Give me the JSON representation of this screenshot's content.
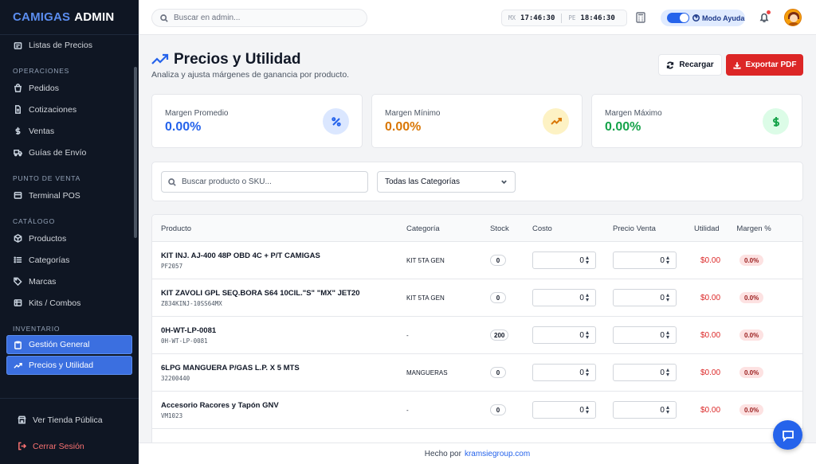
{
  "brand": {
    "part1": "CAMIGAS",
    "part2": "ADMIN"
  },
  "sidebar": {
    "top_item": "Listas de Precios",
    "sections": [
      {
        "title": "OPERACIONES",
        "items": [
          "Pedidos",
          "Cotizaciones",
          "Ventas",
          "Guías de Envío"
        ]
      },
      {
        "title": "PUNTO DE VENTA",
        "items": [
          "Terminal POS"
        ]
      },
      {
        "title": "CATÁLOGO",
        "items": [
          "Productos",
          "Categorías",
          "Marcas",
          "Kits / Combos"
        ]
      },
      {
        "title": "INVENTARIO",
        "items": [
          "Gestión General",
          "Precios y Utilidad"
        ]
      }
    ],
    "bottom": {
      "store": "Ver Tienda Pública",
      "logout": "Cerrar Sesión"
    }
  },
  "topbar": {
    "search_placeholder": "Buscar en admin...",
    "clocks": [
      {
        "code": "MX",
        "time": "17:46:30"
      },
      {
        "code": "PE",
        "time": "18:46:30"
      }
    ],
    "help_label": "Modo Ayuda"
  },
  "page": {
    "title": "Precios y Utilidad",
    "subtitle": "Analiza y ajusta márgenes de ganancia por producto.",
    "reload_label": "Recargar",
    "export_label": "Exportar PDF"
  },
  "stats": [
    {
      "label": "Margen Promedio",
      "value": "0.00%",
      "color": "#2563eb",
      "icon": "percent-icon"
    },
    {
      "label": "Margen Mínimo",
      "value": "0.00%",
      "color": "#d97706",
      "icon": "trending-up-icon"
    },
    {
      "label": "Margen Máximo",
      "value": "0.00%",
      "color": "#16a34a",
      "icon": "dollar-icon"
    }
  ],
  "filters": {
    "search_placeholder": "Buscar producto o SKU...",
    "category_selected": "Todas las Categorías"
  },
  "table": {
    "headers": {
      "product": "Producto",
      "category": "Categoría",
      "stock": "Stock",
      "cost": "Costo",
      "price": "Precio Venta",
      "utility": "Utilidad",
      "margin": "Margen %"
    },
    "rows": [
      {
        "name": "KIT INJ. AJ-400 48P OBD 4C + P/T CAMIGAS",
        "sku": "PF2057",
        "category": "KIT 5TA GEN",
        "stock": "0",
        "cost": "0",
        "price": "0",
        "utility": "$0.00",
        "margin": "0.0%"
      },
      {
        "name": "KIT ZAVOLI GPL SEQ.BORA S64 10CIL.\"S\" \"MX\" JET20",
        "sku": "Z834KINJ-10SS64MX",
        "category": "KIT 5TA GEN",
        "stock": "0",
        "cost": "0",
        "price": "0",
        "utility": "$0.00",
        "margin": "0.0%"
      },
      {
        "name": "0H-WT-LP-0081",
        "sku": "0H-WT-LP-0081",
        "category": "-",
        "stock": "200",
        "cost": "0",
        "price": "0",
        "utility": "$0.00",
        "margin": "0.0%"
      },
      {
        "name": "6LPG MANGUERA P/GAS L.P. X 5 MTS",
        "sku": "32200440",
        "category": "MANGUERAS",
        "stock": "0",
        "cost": "0",
        "price": "0",
        "utility": "$0.00",
        "margin": "0.0%"
      },
      {
        "name": "Accesorio Racores y Tapón GNV",
        "sku": "VM1023",
        "category": "-",
        "stock": "0",
        "cost": "0",
        "price": "0",
        "utility": "$0.00",
        "margin": "0.0%"
      }
    ]
  },
  "footer": {
    "text": "Hecho por",
    "link": "kramsiegroup.com"
  }
}
